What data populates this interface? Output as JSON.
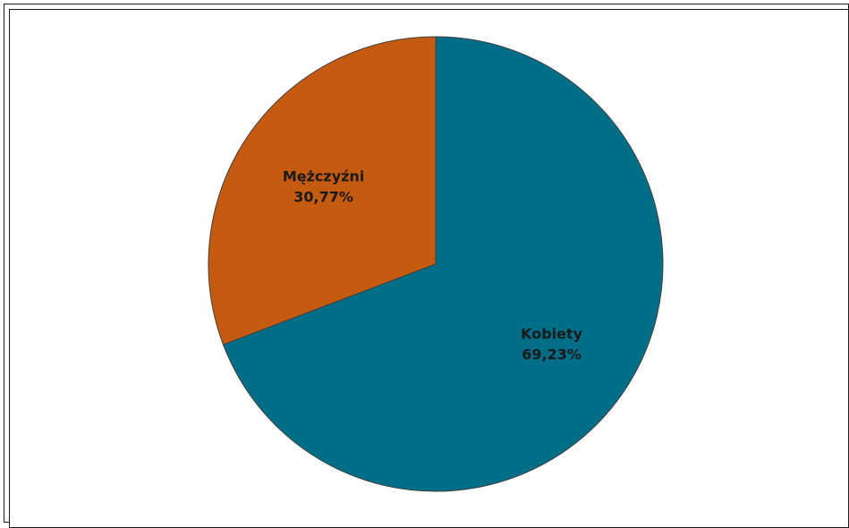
{
  "chart_data": {
    "type": "pie",
    "categories": [
      "Kobiety",
      "Mężczyźni"
    ],
    "values": [
      69.23,
      30.77
    ],
    "data_labels": [
      {
        "name": "Kobiety",
        "value": "69,23%"
      },
      {
        "name": "Mężczyźni",
        "value": "30,77%"
      }
    ],
    "colors": [
      "#006e87",
      "#c55a11"
    ],
    "start_angle": "12 o'clock",
    "direction": "clockwise",
    "legend": "none",
    "title": ""
  }
}
